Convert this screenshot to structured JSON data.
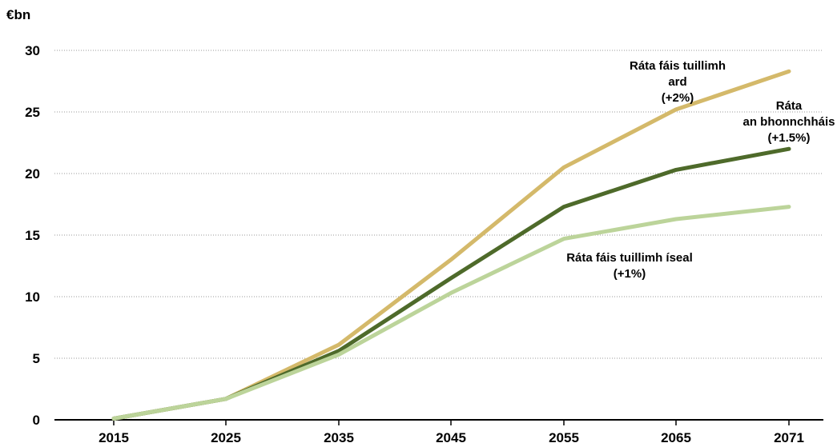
{
  "chart_data": {
    "type": "line",
    "unit_label": "€bn",
    "x": [
      "2015",
      "2025",
      "2035",
      "2045",
      "2055",
      "2065",
      "2071"
    ],
    "ylim": [
      0,
      30
    ],
    "yticks": [
      "0",
      "5",
      "10",
      "15",
      "20",
      "25",
      "30"
    ],
    "grid": "horizontal-dotted",
    "series": [
      {
        "name": "Ráta fáis tuillimh ard (+2%)",
        "color": "#d4b96a",
        "values": [
          0.1,
          1.7,
          6.1,
          13.0,
          20.5,
          25.2,
          28.3
        ]
      },
      {
        "name": "Ráta an bhonnchháis (+1.5%)",
        "color": "#4e6a2a",
        "values": [
          0.1,
          1.7,
          5.6,
          11.5,
          17.3,
          20.3,
          22.0
        ]
      },
      {
        "name": "Ráta fáis tuillimh íseal (+1%)",
        "color": "#bcd49a",
        "values": [
          0.1,
          1.7,
          5.3,
          10.3,
          14.7,
          16.3,
          17.3
        ]
      }
    ],
    "annotations": [
      {
        "series": 0,
        "lines": [
          "Ráta fáis tuillimh",
          "ard",
          "(+2%)"
        ]
      },
      {
        "series": 1,
        "lines": [
          "Ráta",
          "an bhonnchháis",
          "(+1.5%)"
        ]
      },
      {
        "series": 2,
        "lines": [
          "Ráta fáis tuillimh íseal",
          "(+1%)"
        ]
      }
    ]
  }
}
